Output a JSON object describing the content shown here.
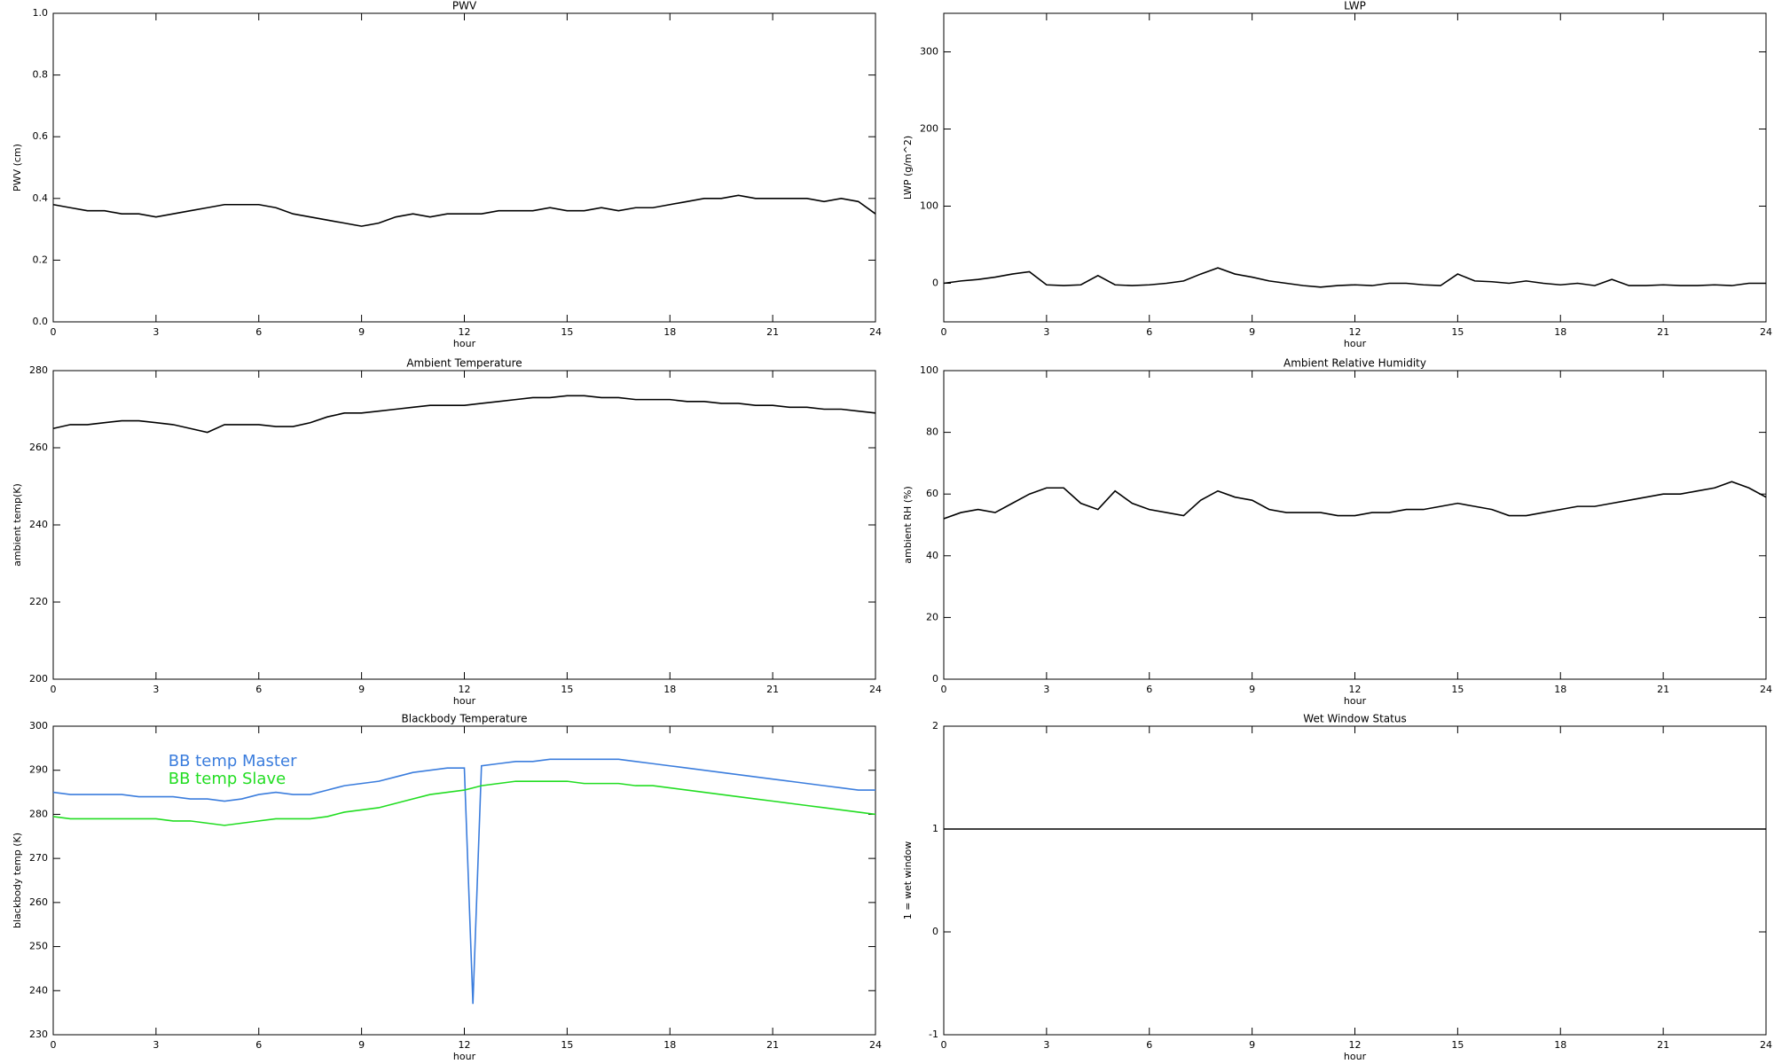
{
  "chart_data": [
    {
      "type": "line",
      "title": "PWV",
      "xlabel": "hour",
      "ylabel": "PWV (cm)",
      "x": [
        0,
        0.5,
        1,
        1.5,
        2,
        2.5,
        3,
        3.5,
        4,
        4.5,
        5,
        5.5,
        6,
        6.5,
        7,
        7.5,
        8,
        8.5,
        9,
        9.5,
        10,
        10.5,
        11,
        11.5,
        12,
        12.5,
        13,
        13.5,
        14,
        14.5,
        15,
        15.5,
        16,
        16.5,
        17,
        17.5,
        18,
        18.5,
        19,
        19.5,
        20,
        20.5,
        21,
        21.5,
        22,
        22.5,
        23,
        23.5,
        24
      ],
      "series": [
        {
          "color": "#000000",
          "values": [
            0.38,
            0.37,
            0.36,
            0.36,
            0.35,
            0.35,
            0.34,
            0.35,
            0.36,
            0.37,
            0.38,
            0.38,
            0.38,
            0.37,
            0.35,
            0.34,
            0.33,
            0.32,
            0.31,
            0.32,
            0.34,
            0.35,
            0.34,
            0.35,
            0.35,
            0.35,
            0.36,
            0.36,
            0.36,
            0.37,
            0.36,
            0.36,
            0.37,
            0.36,
            0.37,
            0.37,
            0.38,
            0.39,
            0.4,
            0.4,
            0.41,
            0.4,
            0.4,
            0.4,
            0.4,
            0.39,
            0.4,
            0.39,
            0.35
          ]
        }
      ],
      "xlim": [
        0,
        24
      ],
      "xticks": [
        0,
        3,
        6,
        9,
        12,
        15,
        18,
        21,
        24
      ],
      "ylim": [
        0,
        1
      ],
      "yticks": [
        {
          "value": 0,
          "label": "0.0"
        },
        {
          "value": 0.2,
          "label": "0.2"
        },
        {
          "value": 0.4,
          "label": "0.4"
        },
        {
          "value": 0.6,
          "label": "0.6"
        },
        {
          "value": 0.8,
          "label": "0.8"
        },
        {
          "value": 1,
          "label": "1.0"
        }
      ]
    },
    {
      "type": "line",
      "title": "LWP",
      "xlabel": "hour",
      "ylabel": "LWP (g/m^2)",
      "x": [
        0,
        0.5,
        1,
        1.5,
        2,
        2.5,
        3,
        3.5,
        4,
        4.5,
        5,
        5.5,
        6,
        6.5,
        7,
        7.5,
        8,
        8.5,
        9,
        9.5,
        10,
        10.5,
        11,
        11.5,
        12,
        12.5,
        13,
        13.5,
        14,
        14.5,
        15,
        15.5,
        16,
        16.5,
        17,
        17.5,
        18,
        18.5,
        19,
        19.5,
        20,
        20.5,
        21,
        21.5,
        22,
        22.5,
        23,
        23.5,
        24
      ],
      "series": [
        {
          "color": "#000000",
          "values": [
            0,
            3,
            5,
            8,
            12,
            15,
            -2,
            -3,
            -2,
            10,
            -2,
            -3,
            -2,
            0,
            3,
            12,
            20,
            12,
            8,
            3,
            0,
            -3,
            -5,
            -3,
            -2,
            -3,
            0,
            0,
            -2,
            -3,
            12,
            3,
            2,
            0,
            3,
            0,
            -2,
            0,
            -3,
            5,
            -3,
            -3,
            -2,
            -3,
            -3,
            -2,
            -3,
            0,
            0
          ]
        }
      ],
      "xlim": [
        0,
        24
      ],
      "xticks": [
        0,
        3,
        6,
        9,
        12,
        15,
        18,
        21,
        24
      ],
      "ylim": [
        -50,
        350
      ],
      "yticks": [
        0,
        100,
        200,
        300
      ]
    },
    {
      "type": "line",
      "title": "Ambient Temperature",
      "xlabel": "hour",
      "ylabel": "ambient temp(K)",
      "x": [
        0,
        0.5,
        1,
        1.5,
        2,
        2.5,
        3,
        3.5,
        4,
        4.5,
        5,
        5.5,
        6,
        6.5,
        7,
        7.5,
        8,
        8.5,
        9,
        9.5,
        10,
        10.5,
        11,
        11.5,
        12,
        12.5,
        13,
        13.5,
        14,
        14.5,
        15,
        15.5,
        16,
        16.5,
        17,
        17.5,
        18,
        18.5,
        19,
        19.5,
        20,
        20.5,
        21,
        21.5,
        22,
        22.5,
        23,
        23.5,
        24
      ],
      "series": [
        {
          "color": "#000000",
          "values": [
            265,
            266,
            266,
            266.5,
            267,
            267,
            266.5,
            266,
            265,
            264,
            266,
            266,
            266,
            265.5,
            265.5,
            266.5,
            268,
            269,
            269,
            269.5,
            270,
            270.5,
            271,
            271,
            271,
            271.5,
            272,
            272.5,
            273,
            273,
            273.5,
            273.5,
            273,
            273,
            272.5,
            272.5,
            272.5,
            272,
            272,
            271.5,
            271.5,
            271,
            271,
            270.5,
            270.5,
            270,
            270,
            269.5,
            269
          ]
        }
      ],
      "xlim": [
        0,
        24
      ],
      "xticks": [
        0,
        3,
        6,
        9,
        12,
        15,
        18,
        21,
        24
      ],
      "ylim": [
        200,
        280
      ],
      "yticks": [
        200,
        220,
        240,
        260,
        280
      ]
    },
    {
      "type": "line",
      "title": "Ambient Relative Humidity",
      "xlabel": "hour",
      "ylabel": "ambient RH (%)",
      "x": [
        0,
        0.5,
        1,
        1.5,
        2,
        2.5,
        3,
        3.5,
        4,
        4.5,
        5,
        5.5,
        6,
        6.5,
        7,
        7.5,
        8,
        8.5,
        9,
        9.5,
        10,
        10.5,
        11,
        11.5,
        12,
        12.5,
        13,
        13.5,
        14,
        14.5,
        15,
        15.5,
        16,
        16.5,
        17,
        17.5,
        18,
        18.5,
        19,
        19.5,
        20,
        20.5,
        21,
        21.5,
        22,
        22.5,
        23,
        23.5,
        24
      ],
      "series": [
        {
          "color": "#000000",
          "values": [
            52,
            54,
            55,
            54,
            57,
            60,
            62,
            62,
            57,
            55,
            61,
            57,
            55,
            54,
            53,
            58,
            61,
            59,
            58,
            55,
            54,
            54,
            54,
            53,
            53,
            54,
            54,
            55,
            55,
            56,
            57,
            56,
            55,
            53,
            53,
            54,
            55,
            56,
            56,
            57,
            58,
            59,
            60,
            60,
            61,
            62,
            64,
            62,
            59
          ]
        }
      ],
      "xlim": [
        0,
        24
      ],
      "xticks": [
        0,
        3,
        6,
        9,
        12,
        15,
        18,
        21,
        24
      ],
      "ylim": [
        0,
        100
      ],
      "yticks": [
        0,
        20,
        40,
        60,
        80,
        100
      ]
    },
    {
      "type": "line",
      "title": "Blackbody Temperature",
      "xlabel": "hour",
      "ylabel": "blackbody temp (K)",
      "legend": "upper left",
      "x": [
        0,
        0.5,
        1,
        1.5,
        2,
        2.5,
        3,
        3.5,
        4,
        4.5,
        5,
        5.5,
        6,
        6.5,
        7,
        7.5,
        8,
        8.5,
        9,
        9.5,
        10,
        10.5,
        11,
        11.5,
        12,
        12.25,
        12.5,
        13,
        13.5,
        14,
        14.5,
        15,
        15.5,
        16,
        16.5,
        17,
        17.5,
        18,
        18.5,
        19,
        19.5,
        20,
        20.5,
        21,
        21.5,
        22,
        22.5,
        23,
        23.5,
        24
      ],
      "series": [
        {
          "name": "BB temp Master",
          "color": "#3b7ddd",
          "values": [
            285,
            284.5,
            284.5,
            284.5,
            284.5,
            284,
            284,
            284,
            283.5,
            283.5,
            283,
            283.5,
            284.5,
            285,
            284.5,
            284.5,
            285.5,
            286.5,
            287,
            287.5,
            288.5,
            289.5,
            290,
            290.5,
            290.5,
            237,
            291,
            291.5,
            292,
            292,
            292.5,
            292.5,
            292.5,
            292.5,
            292.5,
            292,
            291.5,
            291,
            290.5,
            290,
            289.5,
            289,
            288.5,
            288,
            287.5,
            287,
            286.5,
            286,
            285.5,
            285.5
          ]
        },
        {
          "name": "BB temp Slave",
          "color": "#22dd22",
          "values": [
            279.5,
            279,
            279,
            279,
            279,
            279,
            279,
            278.5,
            278.5,
            278,
            277.5,
            278,
            278.5,
            279,
            279,
            279,
            279.5,
            280.5,
            281,
            281.5,
            282.5,
            283.5,
            284.5,
            285,
            285.5,
            286,
            286.5,
            287,
            287.5,
            287.5,
            287.5,
            287.5,
            287,
            287,
            287,
            286.5,
            286.5,
            286,
            285.5,
            285,
            284.5,
            284,
            283.5,
            283,
            282.5,
            282,
            281.5,
            281,
            280.5,
            280
          ]
        }
      ],
      "xlim": [
        0,
        24
      ],
      "xticks": [
        0,
        3,
        6,
        9,
        12,
        15,
        18,
        21,
        24
      ],
      "ylim": [
        230,
        300
      ],
      "yticks": [
        230,
        240,
        250,
        260,
        270,
        280,
        290,
        300
      ]
    },
    {
      "type": "line",
      "title": "Wet Window Status",
      "xlabel": "hour",
      "ylabel": "1 = wet window",
      "x": [
        0,
        24
      ],
      "series": [
        {
          "color": "#000000",
          "values": [
            1,
            1
          ]
        }
      ],
      "xlim": [
        0,
        24
      ],
      "xticks": [
        0,
        3,
        6,
        9,
        12,
        15,
        18,
        21,
        24
      ],
      "ylim": [
        -1,
        2
      ],
      "yticks": [
        -1,
        0,
        1,
        2
      ]
    }
  ]
}
